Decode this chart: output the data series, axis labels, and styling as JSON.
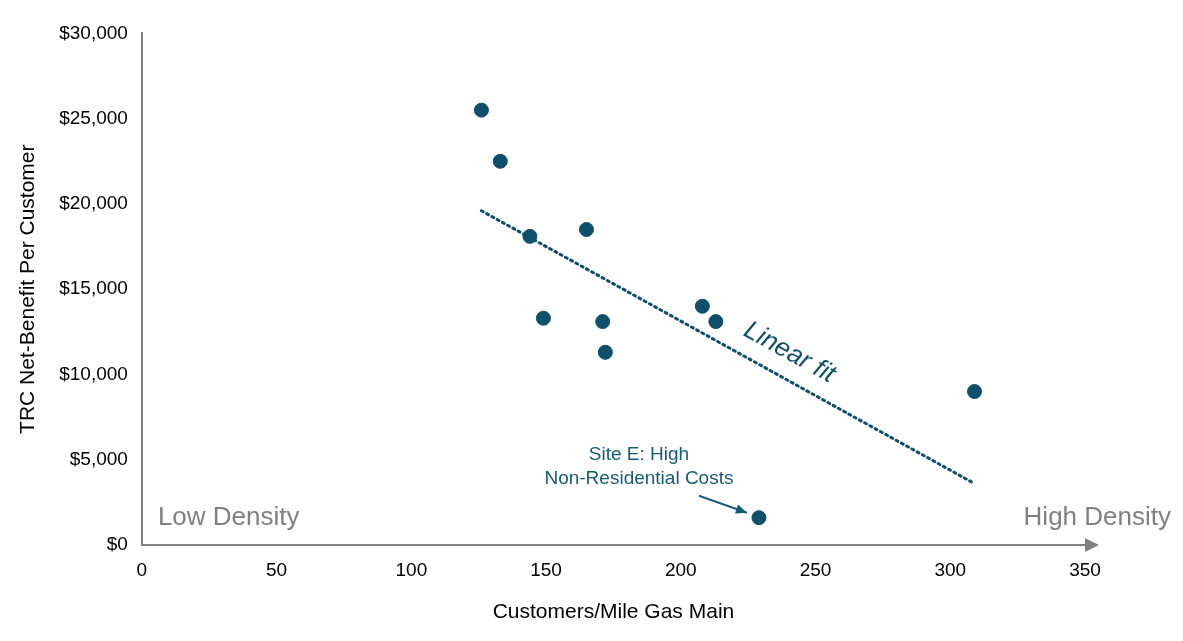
{
  "chart_data": {
    "type": "scatter",
    "xlabel": "Customers/Mile Gas Main",
    "ylabel": "TRC Net-Benefit Per Customer",
    "xlim": [
      0,
      350
    ],
    "xticks": [
      0,
      50,
      100,
      150,
      200,
      250,
      300,
      350
    ],
    "ylim": [
      0,
      30000
    ],
    "yticks": [
      {
        "value": 0,
        "label": "$0"
      },
      {
        "value": 5000,
        "label": "$5,000"
      },
      {
        "value": 10000,
        "label": "$10,000"
      },
      {
        "value": 15000,
        "label": "$15,000"
      },
      {
        "value": 20000,
        "label": "$20,000"
      },
      {
        "value": 25000,
        "label": "$25,000"
      },
      {
        "value": 30000,
        "label": "$30,000"
      }
    ],
    "grid": false,
    "legend": false,
    "series": [
      {
        "color": "#0e4f6b",
        "marker": "circle",
        "x": [
          126,
          133,
          144,
          165,
          149,
          171,
          172,
          208,
          213,
          229,
          309
        ],
        "values": [
          25500,
          22500,
          18100,
          18500,
          13300,
          13100,
          11300,
          14000,
          13100,
          1600,
          9000
        ]
      },
      {
        "type": "line",
        "name": "Linear fit",
        "color": "#0e4f6b",
        "marker": "none",
        "line_style": "dotted",
        "x": [
          126,
          309
        ],
        "values": [
          19600,
          3600
        ]
      }
    ],
    "annotations": [
      {
        "text": "Site E: High Non-Residential Costs",
        "x": 229,
        "y": 1600
      },
      "Low Density",
      "High Density"
    ]
  }
}
